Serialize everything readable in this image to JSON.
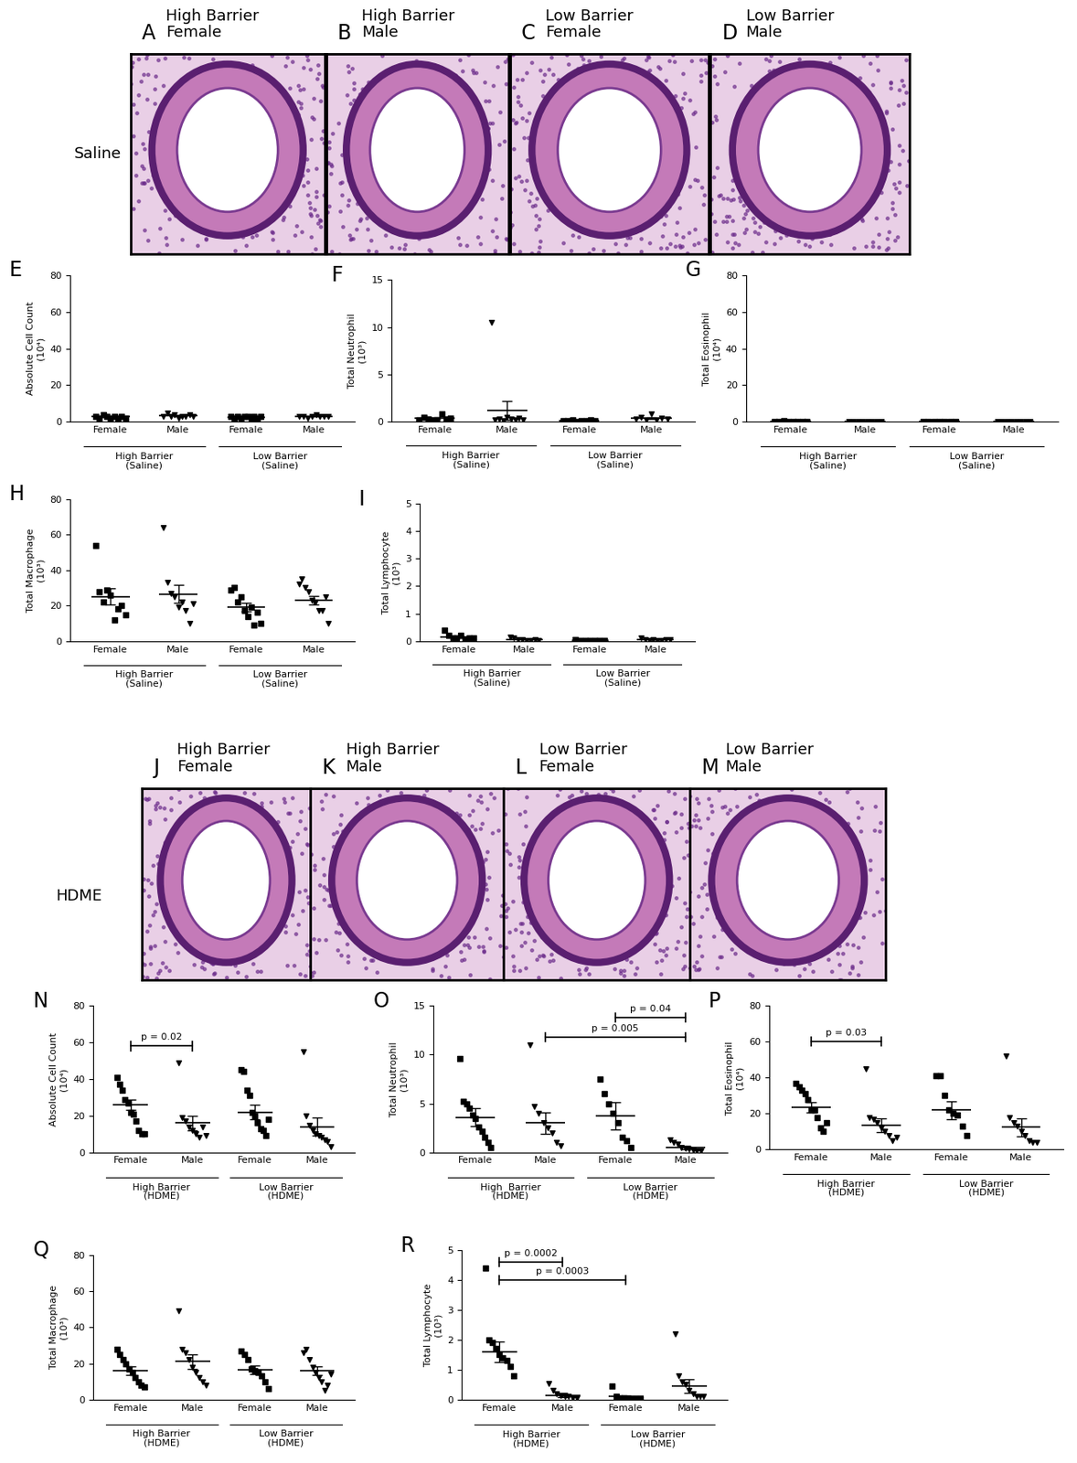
{
  "image_rows": [
    {
      "row_label": "Saline",
      "panels": [
        {
          "letter": "A",
          "label": "High Barrier\nFemale"
        },
        {
          "letter": "B",
          "label": "High Barrier\nMale"
        },
        {
          "letter": "C",
          "label": "Low Barrier\nFemale"
        },
        {
          "letter": "D",
          "label": "Low Barrier\nMale"
        }
      ]
    },
    {
      "row_label": "HDME",
      "panels": [
        {
          "letter": "J",
          "label": "High Barrier\nFemale"
        },
        {
          "letter": "K",
          "label": "High Barrier\nMale"
        },
        {
          "letter": "L",
          "label": "Low Barrier\nFemale"
        },
        {
          "letter": "M",
          "label": "Low Barrier\nMale"
        }
      ]
    }
  ],
  "chart_data": [
    {
      "type": "scatter",
      "panel": "E",
      "y_label": "Absolute Cell Count\n(10⁴)",
      "categories": [
        "Female",
        "Male",
        "Female",
        "Male"
      ],
      "groups": [
        "High Barrier\n(Saline)",
        "Low Barrier\n(Saline)"
      ],
      "markers": [
        "square",
        "triangle_down",
        "square",
        "triangle_down"
      ],
      "values": [
        [
          3,
          2,
          4,
          3,
          2,
          3,
          2,
          3,
          2
        ],
        [
          3,
          5,
          3,
          4,
          2,
          3,
          3,
          4,
          3
        ],
        [
          3,
          2,
          3,
          2,
          3,
          3,
          2,
          3,
          2,
          3
        ],
        [
          3,
          3,
          2,
          3,
          4,
          3,
          3,
          3
        ]
      ],
      "means": [
        2.7,
        3.3,
        2.6,
        3.0
      ],
      "sems": [
        0.3,
        0.3,
        0.2,
        0.2
      ],
      "ylim": [
        0,
        80
      ],
      "yticks": [
        0,
        20,
        40,
        60,
        80
      ],
      "annotations": []
    },
    {
      "type": "scatter",
      "panel": "F",
      "y_label": "Total Neutrophil\n(10³)",
      "categories": [
        "Female",
        "Male",
        "Female",
        "Male"
      ],
      "groups": [
        "High Barrier\n(Saline)",
        "Low Barrier\n(Saline)"
      ],
      "markers": [
        "square",
        "triangle_down",
        "square",
        "triangle_down"
      ],
      "values": [
        [
          0.2,
          0.5,
          0.3,
          0.1,
          0.2,
          0.8,
          0.3,
          0.4
        ],
        [
          10.5,
          0.2,
          0.3,
          0.1,
          0.5,
          0.3,
          0.2,
          0.4,
          0.2
        ],
        [
          0.1,
          0.1,
          0.2,
          0.0,
          0.1,
          0.1,
          0.2,
          0.1
        ],
        [
          0.3,
          0.5,
          0.2,
          0.8,
          0.2,
          0.4,
          0.3
        ]
      ],
      "means": [
        0.35,
        1.2,
        0.1,
        0.4
      ],
      "sems": [
        0.08,
        1.0,
        0.03,
        0.08
      ],
      "ylim": [
        0,
        15
      ],
      "yticks": [
        0,
        5,
        10,
        15
      ],
      "annotations": []
    },
    {
      "type": "scatter",
      "panel": "G",
      "y_label": "Total Eosinophil\n(10⁴)",
      "categories": [
        "Female",
        "Male",
        "Female",
        "Male"
      ],
      "groups": [
        "High Barrier\n(Saline)",
        "Low Barrier\n(Saline)"
      ],
      "markers": [
        "square",
        "triangle_down",
        "square",
        "triangle_down"
      ],
      "values": [
        [
          0.3,
          0.2,
          0.4,
          0.2,
          0.3,
          0.2,
          0.3,
          0.2
        ],
        [
          0.1,
          0.1,
          0.2,
          0.1,
          0.1,
          0.1,
          0.1,
          0.1
        ],
        [
          0.3,
          0.2,
          0.3,
          0.2,
          0.2,
          0.3,
          0.2
        ],
        [
          0.1,
          0.1,
          0.1,
          0.2,
          0.1,
          0.1,
          0.1,
          0.1
        ]
      ],
      "means": [
        0.3,
        0.1,
        0.2,
        0.1
      ],
      "sems": [
        0.03,
        0.02,
        0.02,
        0.02
      ],
      "ylim": [
        0,
        80
      ],
      "yticks": [
        0,
        20,
        40,
        60,
        80
      ],
      "annotations": []
    },
    {
      "type": "scatter",
      "panel": "H",
      "y_label": "Total Macrophage\n(10³)",
      "categories": [
        "Female",
        "Male",
        "Female",
        "Male"
      ],
      "groups": [
        "High Barrier\n(Saline)",
        "Low Barrier\n(Saline)"
      ],
      "markers": [
        "square",
        "triangle_down",
        "square",
        "triangle_down"
      ],
      "values": [
        [
          54,
          28,
          22,
          29,
          26,
          12,
          18,
          20,
          15
        ],
        [
          64,
          33,
          27,
          25,
          19,
          22,
          17,
          10,
          21
        ],
        [
          29,
          30,
          22,
          25,
          17,
          14,
          19,
          9,
          16,
          10
        ],
        [
          32,
          35,
          30,
          28,
          23,
          22,
          17,
          17,
          25,
          10
        ]
      ],
      "means": [
        25,
        26.5,
        19,
        23
      ],
      "sems": [
        4.5,
        5,
        2.5,
        2.5
      ],
      "ylim": [
        0,
        80
      ],
      "yticks": [
        0,
        20,
        40,
        60,
        80
      ],
      "annotations": []
    },
    {
      "type": "scatter",
      "panel": "I",
      "y_label": "Total Lymphocyte\n(10³)",
      "categories": [
        "Female",
        "Male",
        "Female",
        "Male"
      ],
      "groups": [
        "High Barrier\n(Saline)",
        "Low Barrier\n(Saline)"
      ],
      "markers": [
        "square",
        "triangle_down",
        "square",
        "triangle_down"
      ],
      "values": [
        [
          0.4,
          0.2,
          0.1,
          0.1,
          0.2,
          0.05,
          0.1,
          0.1
        ],
        [
          0.15,
          0.1,
          0.05,
          0.05,
          0.02,
          0.03,
          0.05,
          0.02
        ],
        [
          0.05,
          0.02,
          0.03,
          0.01,
          0.02,
          0.02,
          0.01
        ],
        [
          0.1,
          0.05,
          0.03,
          0.05,
          0.02,
          0.03,
          0.05,
          0.04
        ]
      ],
      "means": [
        0.15,
        0.06,
        0.02,
        0.05
      ],
      "sems": [
        0.04,
        0.02,
        0.01,
        0.01
      ],
      "ylim": [
        0,
        5
      ],
      "yticks": [
        0,
        1,
        2,
        3,
        4,
        5
      ],
      "annotations": []
    },
    {
      "type": "scatter",
      "panel": "N",
      "y_label": "Absolute Cell Count\n(10⁴)",
      "categories": [
        "Female",
        "Male",
        "Female",
        "Male"
      ],
      "groups": [
        "High Barrier\n(HDME)",
        "Low Barrier\n(HDME)"
      ],
      "markers": [
        "square",
        "triangle_down",
        "square",
        "triangle_down"
      ],
      "values": [
        [
          41,
          37,
          34,
          29,
          27,
          22,
          21,
          17,
          12,
          10,
          10
        ],
        [
          49,
          19,
          17,
          14,
          12,
          10,
          8,
          14,
          9
        ],
        [
          45,
          44,
          34,
          31,
          22,
          20,
          16,
          13,
          12,
          9,
          18
        ],
        [
          55,
          20,
          15,
          12,
          10,
          9,
          8,
          7,
          6,
          3
        ]
      ],
      "means": [
        26,
        16,
        22,
        14
      ],
      "sems": [
        3,
        4,
        4,
        5
      ],
      "ylim": [
        0,
        80
      ],
      "yticks": [
        0,
        20,
        40,
        60,
        80
      ],
      "annotations": [
        {
          "text": "p = 0.02",
          "from": 0,
          "to": 1,
          "y": 58
        }
      ]
    },
    {
      "type": "scatter",
      "panel": "O",
      "y_label": "Total Neutrophil\n(10³)",
      "categories": [
        "Female",
        "Male",
        "Female",
        "Male"
      ],
      "groups": [
        "High  Barrier\n(HDME)",
        "Low Barrier\n(HDME)"
      ],
      "markers": [
        "square",
        "triangle_down",
        "square",
        "triangle_down"
      ],
      "values": [
        [
          9.6,
          5.2,
          5.0,
          4.5,
          3.8,
          3.5,
          2.6,
          2.2,
          1.5,
          1.0,
          0.5
        ],
        [
          11,
          4.7,
          4.0,
          3.0,
          2.5,
          2.0,
          1.0,
          0.7
        ],
        [
          7.5,
          6,
          5,
          4,
          3,
          1.5,
          1.2,
          0.5
        ],
        [
          1.3,
          1.0,
          0.8,
          0.5,
          0.4,
          0.3,
          0.2,
          0.1,
          0.1
        ]
      ],
      "means": [
        3.6,
        3.0,
        3.7,
        0.5
      ],
      "sems": [
        0.9,
        1.1,
        1.4,
        0.15
      ],
      "ylim": [
        0,
        15
      ],
      "yticks": [
        0,
        5,
        10,
        15
      ],
      "annotations": [
        {
          "text": "p = 0.04",
          "from": 2,
          "to": 3,
          "y": 13.8
        },
        {
          "text": "p = 0.005",
          "from": 1,
          "to": 3,
          "y": 11.8
        }
      ]
    },
    {
      "type": "scatter",
      "panel": "P",
      "y_label": "Total Eosinophil\n(10⁴)",
      "categories": [
        "Female",
        "Male",
        "Female",
        "Male"
      ],
      "groups": [
        "High Barrier\n(HDME)",
        "Low Barrier\n(HDME)"
      ],
      "markers": [
        "square",
        "triangle_down",
        "square",
        "triangle_down"
      ],
      "values": [
        [
          37,
          35,
          33,
          31,
          28,
          22,
          22,
          18,
          12,
          10,
          15
        ],
        [
          45,
          18,
          17,
          15,
          12,
          10,
          8,
          5,
          7
        ],
        [
          41,
          41,
          30,
          22,
          20,
          19,
          13,
          8
        ],
        [
          52,
          18,
          15,
          13,
          10,
          8,
          5,
          4,
          4
        ]
      ],
      "means": [
        23.5,
        13.5,
        22,
        12.5
      ],
      "sems": [
        3,
        4,
        5,
        5
      ],
      "ylim": [
        0,
        80
      ],
      "yticks": [
        0,
        20,
        40,
        60,
        80
      ],
      "annotations": [
        {
          "text": "p = 0.03",
          "from": 0,
          "to": 1,
          "y": 60
        }
      ]
    },
    {
      "type": "scatter",
      "panel": "Q",
      "y_label": "Total Macrophage\n(10³)",
      "categories": [
        "Female",
        "Male",
        "Female",
        "Male"
      ],
      "groups": [
        "High Barrier\n(HDME)",
        "Low Barrier\n(HDME)"
      ],
      "markers": [
        "square",
        "triangle_down",
        "square",
        "triangle_down"
      ],
      "values": [
        [
          28,
          25,
          22,
          20,
          17,
          15,
          12,
          10,
          8,
          7
        ],
        [
          49,
          28,
          26,
          22,
          18,
          15,
          12,
          10,
          8
        ],
        [
          27,
          25,
          22,
          17,
          16,
          15,
          13,
          10,
          6
        ],
        [
          26,
          28,
          22,
          18,
          15,
          12,
          10,
          5,
          8,
          14
        ]
      ],
      "means": [
        16,
        21,
        16.5,
        16
      ],
      "sems": [
        2.5,
        4,
        2.5,
        2.5
      ],
      "ylim": [
        0,
        80
      ],
      "yticks": [
        0,
        20,
        40,
        60,
        80
      ],
      "annotations": []
    },
    {
      "type": "scatter",
      "panel": "R",
      "y_label": "Total Lymphocyte\n(10³)",
      "categories": [
        "Female",
        "Male",
        "Female",
        "Male"
      ],
      "groups": [
        "High Barrier\n(HDME)",
        "Low Barrier\n(HDME)"
      ],
      "markers": [
        "square",
        "triangle_down",
        "square",
        "triangle_down"
      ],
      "values": [
        [
          4.4,
          2.0,
          1.9,
          1.7,
          1.5,
          1.4,
          1.3,
          1.1,
          0.8
        ],
        [
          0.55,
          0.3,
          0.2,
          0.15,
          0.1,
          0.1,
          0.05,
          0.05
        ],
        [
          0.45,
          0.1,
          0.05,
          0.05,
          0.03,
          0.02,
          0.02,
          0.01
        ],
        [
          2.2,
          0.8,
          0.6,
          0.5,
          0.3,
          0.2,
          0.1,
          0.1,
          0.1
        ]
      ],
      "means": [
        1.6,
        0.15,
        0.1,
        0.45
      ],
      "sems": [
        0.35,
        0.06,
        0.05,
        0.22
      ],
      "ylim": [
        0,
        5
      ],
      "yticks": [
        0,
        1,
        2,
        3,
        4,
        5
      ],
      "annotations": [
        {
          "text": "p = 0.0002",
          "from": 0,
          "to": 1,
          "y": 4.6
        },
        {
          "text": "p = 0.0003",
          "from": 0,
          "to": 2,
          "y": 4.0
        }
      ]
    }
  ]
}
